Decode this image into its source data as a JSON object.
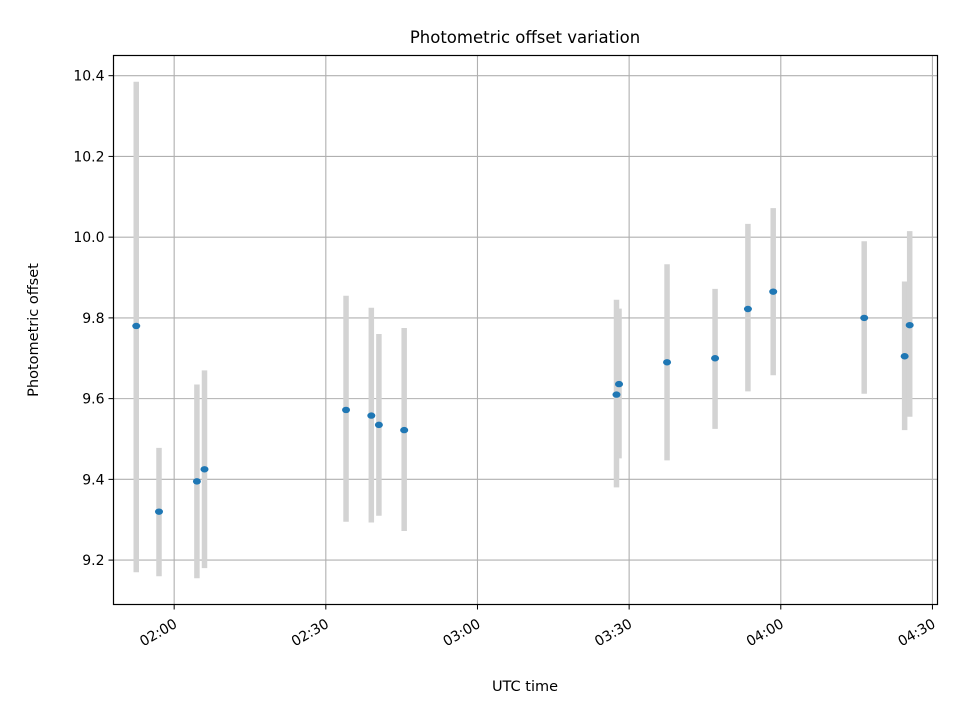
{
  "chart_data": {
    "type": "scatter",
    "title": "Photometric offset variation",
    "xlabel": "UTC time",
    "ylabel": "Photometric offset",
    "grid": true,
    "legend": "none",
    "xlim": [
      "01:48",
      "04:31"
    ],
    "ylim": [
      9.09,
      10.45
    ],
    "x_ticks": [
      "02:00",
      "02:30",
      "03:00",
      "03:30",
      "04:00",
      "04:30"
    ],
    "y_ticks": [
      "9.2",
      "9.4",
      "9.6",
      "9.8",
      "10.0",
      "10.2",
      "10.4"
    ],
    "series": [
      {
        "marker": "point",
        "color": "#1f77b4",
        "errorbar_color": "#d3d3d3",
        "points": [
          {
            "x": "01:52:30",
            "y": 9.78,
            "ylow": 9.17,
            "yhigh": 10.385
          },
          {
            "x": "01:57:00",
            "y": 9.32,
            "ylow": 9.16,
            "yhigh": 9.478
          },
          {
            "x": "02:04:30",
            "y": 9.395,
            "ylow": 9.155,
            "yhigh": 9.635
          },
          {
            "x": "02:06:00",
            "y": 9.425,
            "ylow": 9.18,
            "yhigh": 9.67
          },
          {
            "x": "02:34:00",
            "y": 9.572,
            "ylow": 9.295,
            "yhigh": 9.855
          },
          {
            "x": "02:39:00",
            "y": 9.558,
            "ylow": 9.293,
            "yhigh": 9.825
          },
          {
            "x": "02:40:30",
            "y": 9.535,
            "ylow": 9.31,
            "yhigh": 9.76
          },
          {
            "x": "02:45:30",
            "y": 9.522,
            "ylow": 9.272,
            "yhigh": 9.775
          },
          {
            "x": "03:27:30",
            "y": 9.61,
            "ylow": 9.38,
            "yhigh": 9.845
          },
          {
            "x": "03:28:00",
            "y": 9.636,
            "ylow": 9.452,
            "yhigh": 9.823
          },
          {
            "x": "03:37:30",
            "y": 9.69,
            "ylow": 9.447,
            "yhigh": 9.933
          },
          {
            "x": "03:47:00",
            "y": 9.7,
            "ylow": 9.525,
            "yhigh": 9.872
          },
          {
            "x": "03:53:30",
            "y": 9.822,
            "ylow": 9.618,
            "yhigh": 10.033
          },
          {
            "x": "03:58:30",
            "y": 9.865,
            "ylow": 9.658,
            "yhigh": 10.072
          },
          {
            "x": "04:16:30",
            "y": 9.8,
            "ylow": 9.612,
            "yhigh": 9.99
          },
          {
            "x": "04:24:30",
            "y": 9.705,
            "ylow": 9.522,
            "yhigh": 9.89
          },
          {
            "x": "04:25:30",
            "y": 9.782,
            "ylow": 9.555,
            "yhigh": 10.015
          }
        ]
      }
    ]
  }
}
